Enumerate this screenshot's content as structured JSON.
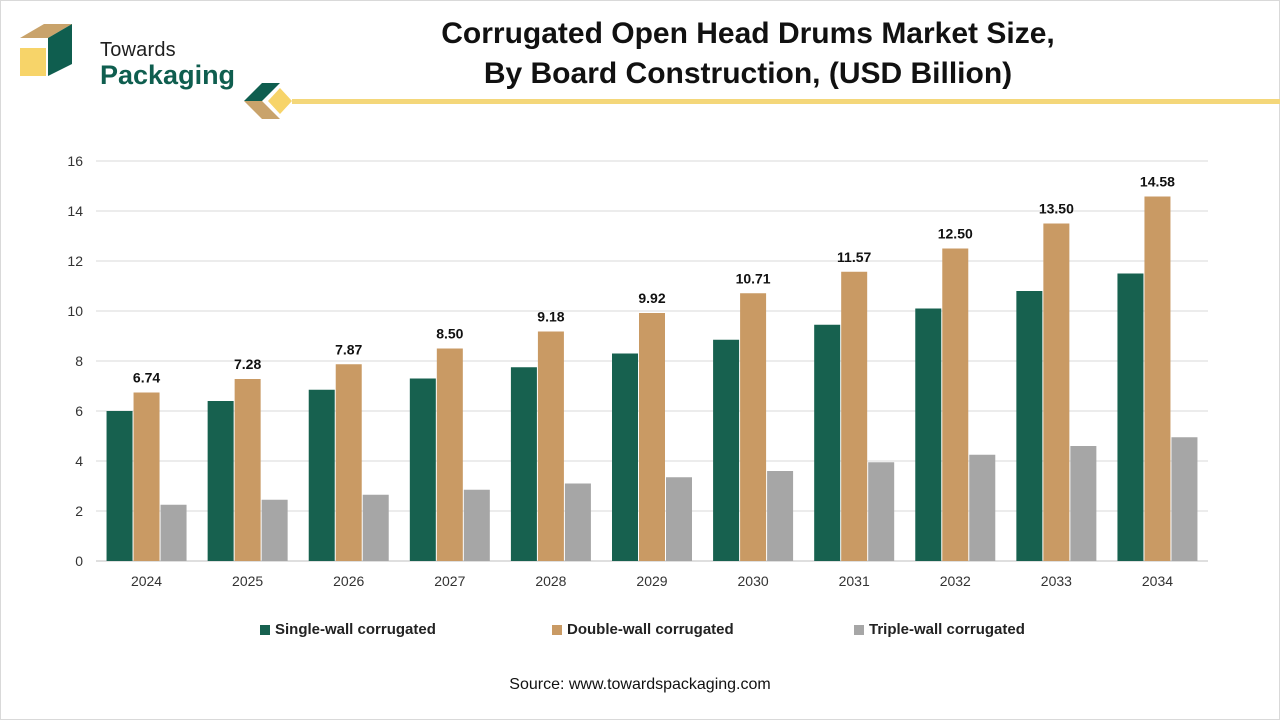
{
  "brand": {
    "line1": "Towards",
    "line2": "Packaging"
  },
  "title": {
    "line1": "Corrugated Open Head Drums Market Size,",
    "line2": "By Board Construction, (USD Billion)"
  },
  "colors": {
    "single": "#17614f",
    "double": "#c99a64",
    "triple": "#a6a6a6",
    "accent_line": "#f4d77a",
    "brand_green": "#0f5e4f",
    "brand_tan": "#c9a36b",
    "brand_yellow": "#f7d469"
  },
  "chart_data": {
    "type": "bar",
    "title": "Corrugated Open Head Drums Market Size, By Board Construction, (USD Billion)",
    "xlabel": "",
    "ylabel": "",
    "ylim": [
      0,
      16
    ],
    "yticks": [
      0,
      2,
      4,
      6,
      8,
      10,
      12,
      14,
      16
    ],
    "grid": true,
    "legend_position": "bottom",
    "categories": [
      "2024",
      "2025",
      "2026",
      "2027",
      "2028",
      "2029",
      "2030",
      "2031",
      "2032",
      "2033",
      "2034"
    ],
    "series": [
      {
        "name": "Single-wall corrugated",
        "key": "single",
        "values": [
          6.0,
          6.4,
          6.85,
          7.3,
          7.75,
          8.3,
          8.85,
          9.45,
          10.1,
          10.8,
          11.5
        ]
      },
      {
        "name": "Double-wall corrugated",
        "key": "double",
        "values": [
          6.74,
          7.28,
          7.87,
          8.5,
          9.18,
          9.92,
          10.71,
          11.57,
          12.5,
          13.5,
          14.58
        ]
      },
      {
        "name": "Triple-wall corrugated",
        "key": "triple",
        "values": [
          2.25,
          2.45,
          2.65,
          2.85,
          3.1,
          3.35,
          3.6,
          3.95,
          4.25,
          4.6,
          4.95
        ]
      }
    ],
    "data_labels": [
      "6.74",
      "7.28",
      "7.87",
      "8.50",
      "9.18",
      "9.92",
      "10.71",
      "11.57",
      "12.50",
      "13.50",
      "14.58"
    ]
  },
  "source": "Source: www.towardspackaging.com"
}
